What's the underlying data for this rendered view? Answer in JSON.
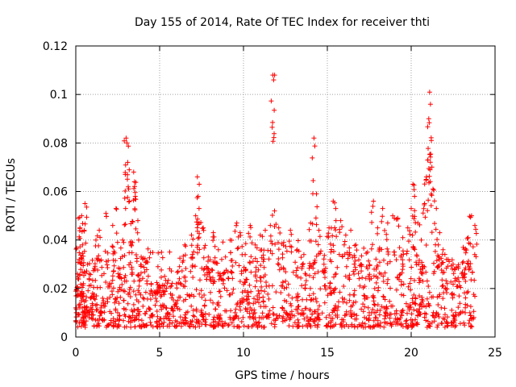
{
  "chart_data": {
    "type": "scatter",
    "title": "Day 155 of 2014, Rate Of TEC Index for receiver thti",
    "xlabel": "GPS time / hours",
    "ylabel": "ROTI / TECUs",
    "xlim": [
      0,
      25
    ],
    "ylim": [
      0,
      0.12
    ],
    "xticks": [
      0,
      5,
      10,
      15,
      20,
      25
    ],
    "xtick_labels": [
      "0",
      "5",
      "10",
      "15",
      "20",
      "25"
    ],
    "yticks": [
      0,
      0.02,
      0.04,
      0.06,
      0.08,
      0.1,
      0.12
    ],
    "ytick_labels": [
      "0",
      "0.02",
      "0.04",
      "0.06",
      "0.08",
      "0.1",
      "0.12"
    ],
    "grid": true,
    "marker": "plus",
    "color": "#ff0000",
    "series": [
      {
        "name": "ROTI",
        "points": [
          [
            0.0,
            0.012
          ],
          [
            0.1,
            0.026
          ],
          [
            0.15,
            0.049
          ],
          [
            0.2,
            0.032
          ],
          [
            0.25,
            0.045
          ],
          [
            0.3,
            0.018
          ],
          [
            0.35,
            0.05
          ],
          [
            0.4,
            0.038
          ],
          [
            0.45,
            0.022
          ],
          [
            0.5,
            0.044
          ],
          [
            0.55,
            0.055
          ],
          [
            0.6,
            0.015
          ],
          [
            0.7,
            0.03
          ],
          [
            0.8,
            0.024
          ],
          [
            0.9,
            0.012
          ],
          [
            1.0,
            0.018
          ],
          [
            1.2,
            0.04
          ],
          [
            1.4,
            0.044
          ],
          [
            1.6,
            0.016
          ],
          [
            1.8,
            0.051
          ],
          [
            2.0,
            0.022
          ],
          [
            2.2,
            0.046
          ],
          [
            2.4,
            0.053
          ],
          [
            2.6,
            0.025
          ],
          [
            2.8,
            0.04
          ],
          [
            2.95,
            0.067
          ],
          [
            3.0,
            0.082
          ],
          [
            3.05,
            0.08
          ],
          [
            3.1,
            0.072
          ],
          [
            3.2,
            0.056
          ],
          [
            3.3,
            0.038
          ],
          [
            3.45,
            0.068
          ],
          [
            3.5,
            0.064
          ],
          [
            3.55,
            0.058
          ],
          [
            3.7,
            0.048
          ],
          [
            3.9,
            0.033
          ],
          [
            4.2,
            0.031
          ],
          [
            4.5,
            0.022
          ],
          [
            4.9,
            0.029
          ],
          [
            5.3,
            0.025
          ],
          [
            5.7,
            0.021
          ],
          [
            6.1,
            0.027
          ],
          [
            6.5,
            0.038
          ],
          [
            6.9,
            0.042
          ],
          [
            7.15,
            0.05
          ],
          [
            7.25,
            0.066
          ],
          [
            7.3,
            0.058
          ],
          [
            7.35,
            0.053
          ],
          [
            7.6,
            0.045
          ],
          [
            7.9,
            0.033
          ],
          [
            8.2,
            0.043
          ],
          [
            8.5,
            0.036
          ],
          [
            8.8,
            0.026
          ],
          [
            9.2,
            0.04
          ],
          [
            9.6,
            0.047
          ],
          [
            9.8,
            0.043
          ],
          [
            10.1,
            0.034
          ],
          [
            10.4,
            0.046
          ],
          [
            10.7,
            0.038
          ],
          [
            11.0,
            0.042
          ],
          [
            11.3,
            0.044
          ],
          [
            11.6,
            0.046
          ],
          [
            11.75,
            0.108
          ],
          [
            11.8,
            0.106
          ],
          [
            11.85,
            0.052
          ],
          [
            12.1,
            0.045
          ],
          [
            12.4,
            0.039
          ],
          [
            12.8,
            0.044
          ],
          [
            13.2,
            0.036
          ],
          [
            13.6,
            0.034
          ],
          [
            14.0,
            0.047
          ],
          [
            14.2,
            0.082
          ],
          [
            14.35,
            0.059
          ],
          [
            14.5,
            0.044
          ],
          [
            14.8,
            0.03
          ],
          [
            15.1,
            0.045
          ],
          [
            15.35,
            0.056
          ],
          [
            15.5,
            0.053
          ],
          [
            15.8,
            0.048
          ],
          [
            16.1,
            0.042
          ],
          [
            16.4,
            0.044
          ],
          [
            16.7,
            0.038
          ],
          [
            17.0,
            0.03
          ],
          [
            17.4,
            0.035
          ],
          [
            17.75,
            0.056
          ],
          [
            18.0,
            0.045
          ],
          [
            18.3,
            0.053
          ],
          [
            18.6,
            0.047
          ],
          [
            18.9,
            0.05
          ],
          [
            19.2,
            0.049
          ],
          [
            19.5,
            0.041
          ],
          [
            19.8,
            0.045
          ],
          [
            20.0,
            0.053
          ],
          [
            20.1,
            0.063
          ],
          [
            20.2,
            0.058
          ],
          [
            20.4,
            0.047
          ],
          [
            20.6,
            0.04
          ],
          [
            20.8,
            0.055
          ],
          [
            20.9,
            0.065
          ],
          [
            21.0,
            0.073
          ],
          [
            21.05,
            0.09
          ],
          [
            21.1,
            0.101
          ],
          [
            21.15,
            0.096
          ],
          [
            21.2,
            0.081
          ],
          [
            21.3,
            0.061
          ],
          [
            21.5,
            0.053
          ],
          [
            21.7,
            0.043
          ],
          [
            21.9,
            0.036
          ],
          [
            22.2,
            0.032
          ],
          [
            22.5,
            0.03
          ],
          [
            22.8,
            0.029
          ],
          [
            23.1,
            0.037
          ],
          [
            23.4,
            0.041
          ],
          [
            23.6,
            0.05
          ],
          [
            23.8,
            0.046
          ],
          [
            0.5,
            0.009
          ],
          [
            1.5,
            0.012
          ],
          [
            2.5,
            0.01
          ],
          [
            3.5,
            0.011
          ],
          [
            4.5,
            0.009
          ],
          [
            5.5,
            0.01
          ],
          [
            6.5,
            0.008
          ],
          [
            7.5,
            0.011
          ],
          [
            8.5,
            0.009
          ],
          [
            9.5,
            0.01
          ],
          [
            10.5,
            0.011
          ],
          [
            11.5,
            0.009
          ],
          [
            12.5,
            0.01
          ],
          [
            13.5,
            0.011
          ],
          [
            14.5,
            0.009
          ],
          [
            15.5,
            0.012
          ],
          [
            16.5,
            0.013
          ],
          [
            17.5,
            0.01
          ],
          [
            18.5,
            0.012
          ],
          [
            19.5,
            0.011
          ],
          [
            20.5,
            0.013
          ],
          [
            21.5,
            0.01
          ],
          [
            22.5,
            0.009
          ],
          [
            23.5,
            0.01
          ]
        ],
        "band": {
          "x_range": [
            0,
            23.8
          ],
          "y_min": 0.004,
          "y_typical_max": 0.03,
          "points_per_hour": 55
        }
      }
    ]
  }
}
